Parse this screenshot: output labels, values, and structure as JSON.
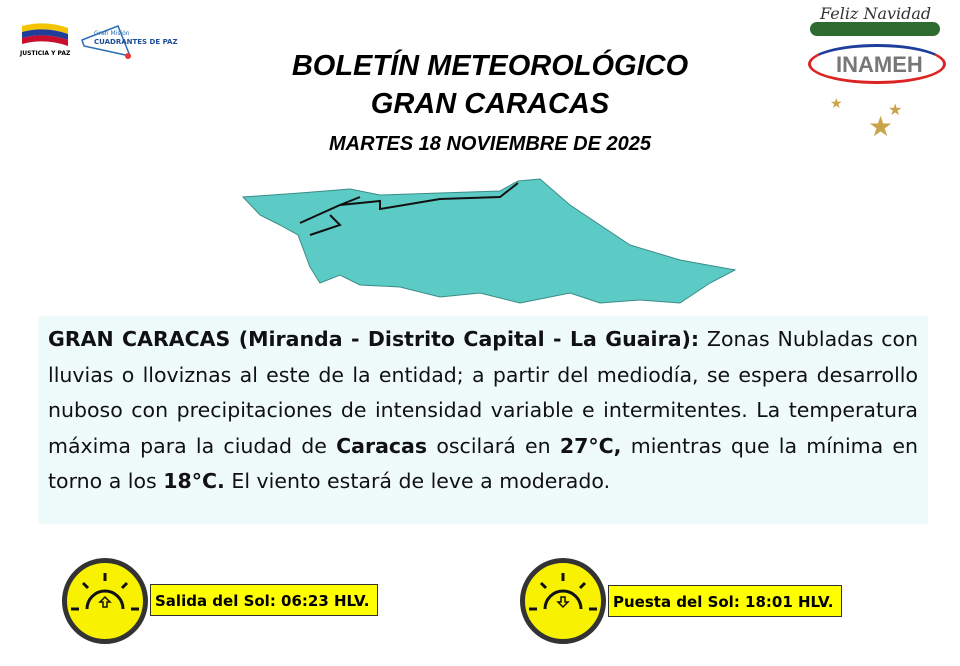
{
  "logos": {
    "left_1": "JUSTICIA Y PAZ",
    "left_2_small": "Gran Misión",
    "left_2_big": "CUADRANTES DE PAZ",
    "right_top": "Feliz Navidad",
    "right": "INAMEH"
  },
  "header": {
    "title": "BOLETÍN METEOROLÓGICO",
    "subtitle": "GRAN CARACAS",
    "date": "MARTES 18 NOVIEMBRE  DE 2025"
  },
  "map": {
    "color": "#5ccbc5"
  },
  "forecast": {
    "region": "GRAN CARACAS (Miranda - Distrito Capital - La Guaira):",
    "text1": " Zonas Nubladas con lluvias o lloviznas al este de la entidad; a partir del mediodía, se espera desarrollo nuboso con precipitaciones de intensidad variable e intermitentes. La temperatura máxima para la ciudad de ",
    "city": "Caracas",
    "text2": " oscilará en ",
    "max": "27°C,",
    "text3": " mientras que la mínima en torno a los ",
    "min": "18°C.",
    "text4": " El viento estará de leve a moderado."
  },
  "sunrise": {
    "label": "Salida del Sol: 06:23 HLV.",
    "icon": "sunrise-icon"
  },
  "sunset": {
    "label": "Puesta del Sol: 18:01 HLV.",
    "icon": "sunset-icon"
  }
}
